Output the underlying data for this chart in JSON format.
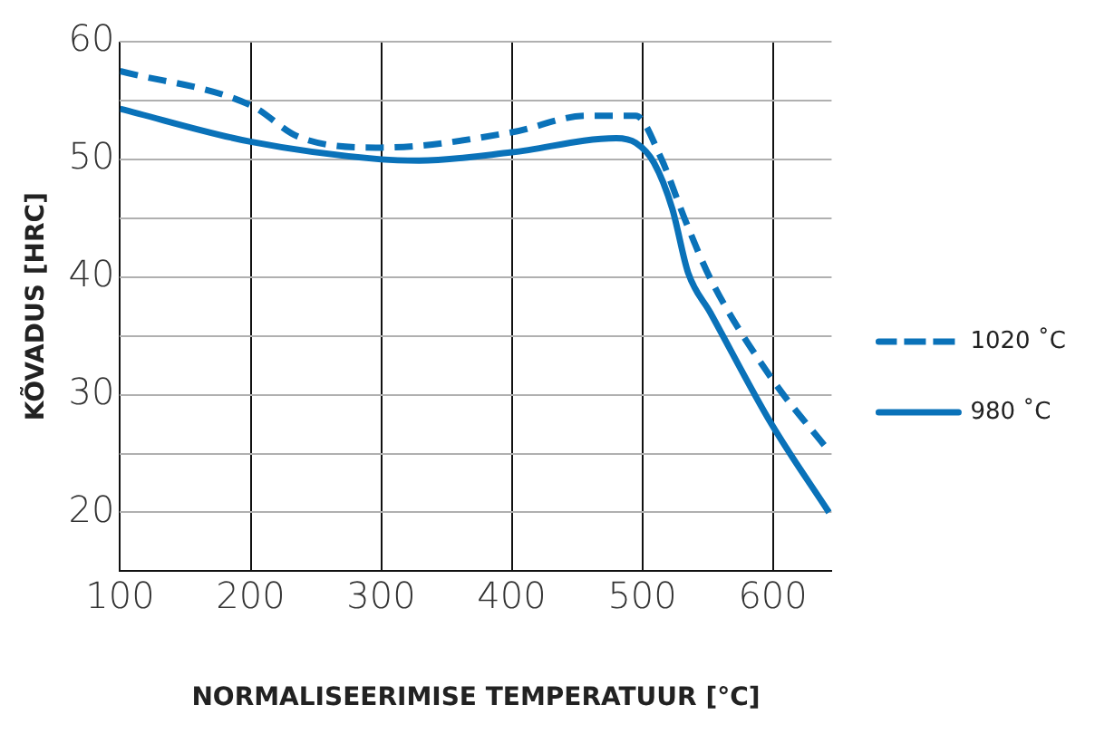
{
  "chart_data": {
    "type": "line",
    "xlabel": "NORMALISEERIMISE TEMPERATUUR [°C]",
    "ylabel": "KÕVADUS [HRC]",
    "xlim": [
      100,
      645
    ],
    "xticks": [
      100,
      200,
      300,
      400,
      500,
      600
    ],
    "ylim": [
      15,
      60
    ],
    "yticks": [
      {
        "value": 15,
        "label": null
      },
      20,
      {
        "value": 25,
        "label": null
      },
      30,
      {
        "value": 35,
        "label": null
      },
      40,
      {
        "value": 45,
        "label": null
      },
      50,
      {
        "value": 55,
        "label": null
      },
      60
    ],
    "grid": true,
    "legend": "right",
    "marker": "none",
    "series": [
      {
        "name": "1020 ˚C",
        "color": "#0a72b9",
        "line_style": "dashed",
        "x": [
          100,
          200,
          237,
          300,
          400,
          457,
          495,
          514,
          533,
          552,
          599,
          643
        ],
        "values": [
          57.5,
          54.6,
          51.9,
          51.0,
          52.3,
          53.7,
          53.7,
          50.2,
          44.8,
          39.9,
          31.4,
          25.2
        ]
      },
      {
        "name": "980 ˚C",
        "color": "#0a72b9",
        "line_style": "solid",
        "x": [
          100,
          200,
          300,
          329,
          400,
          480,
          495,
          509,
          523,
          535,
          552,
          599,
          643
        ],
        "values": [
          54.3,
          51.5,
          50.0,
          49.9,
          50.6,
          51.8,
          51.4,
          49.7,
          45.8,
          40.4,
          37.0,
          27.5,
          20.0
        ]
      }
    ]
  }
}
